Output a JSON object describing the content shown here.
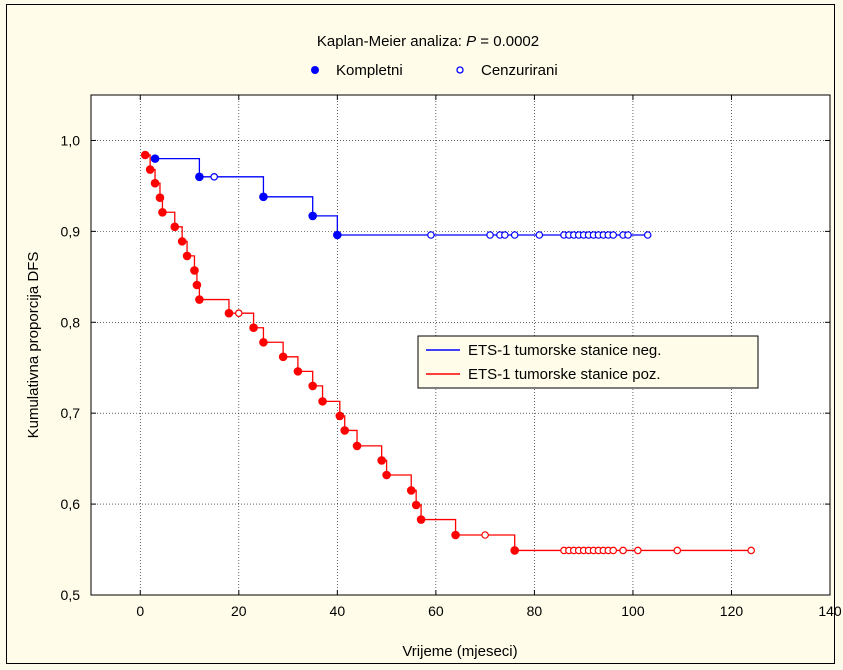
{
  "chart_data": {
    "type": "line",
    "title_prefix": "Kaplan-Meier analiza: ",
    "title_p": "P",
    "title_suffix": " = 0.0002",
    "marker_legend": {
      "complete": "Kompletni",
      "censored": "Cenzurirani"
    },
    "xlabel": "Vrijeme (mjeseci)",
    "ylabel": "Kumulativna proporcija DFS",
    "xlim": [
      -10,
      140
    ],
    "ylim": [
      0.5,
      1.05
    ],
    "xticks": [
      0,
      20,
      40,
      60,
      80,
      100,
      120,
      140
    ],
    "xtick_labels": [
      "0",
      "20",
      "40",
      "60",
      "80",
      "100",
      "120",
      "140"
    ],
    "yticks": [
      0.5,
      0.6,
      0.7,
      0.8,
      0.9,
      1.0
    ],
    "ytick_labels": [
      "0,5",
      "0,6",
      "0,7",
      "0,8",
      "0,9",
      "1,0"
    ],
    "series": [
      {
        "name": "ETS-1 tumorske stanice neg.",
        "color": "#0000ff",
        "start_x": 3,
        "start_y": 0.98,
        "end_x": 103,
        "events": [
          [
            3,
            0.98
          ],
          [
            12,
            0.96
          ],
          [
            25,
            0.938
          ],
          [
            35,
            0.917
          ],
          [
            40,
            0.896
          ]
        ],
        "censored": [
          [
            15,
            0.96
          ],
          [
            59,
            0.896
          ],
          [
            71,
            0.896
          ],
          [
            73,
            0.896
          ],
          [
            74,
            0.896
          ],
          [
            76,
            0.896
          ],
          [
            81,
            0.896
          ],
          [
            86,
            0.896
          ],
          [
            87,
            0.896
          ],
          [
            88,
            0.896
          ],
          [
            89,
            0.896
          ],
          [
            90,
            0.896
          ],
          [
            91,
            0.896
          ],
          [
            92,
            0.896
          ],
          [
            93,
            0.896
          ],
          [
            94,
            0.896
          ],
          [
            95,
            0.896
          ],
          [
            96,
            0.896
          ],
          [
            98,
            0.896
          ],
          [
            99,
            0.896
          ],
          [
            103,
            0.896
          ]
        ]
      },
      {
        "name": "ETS-1 tumorske stanice poz.",
        "color": "#ff0000",
        "start_x": 1,
        "start_y": 0.985,
        "end_x": 124,
        "events": [
          [
            1,
            0.984
          ],
          [
            2,
            0.968
          ],
          [
            3,
            0.953
          ],
          [
            4,
            0.937
          ],
          [
            4.5,
            0.921
          ],
          [
            7,
            0.905
          ],
          [
            8.5,
            0.889
          ],
          [
            9.5,
            0.873
          ],
          [
            11,
            0.857
          ],
          [
            11.5,
            0.841
          ],
          [
            12,
            0.825
          ],
          [
            18,
            0.81
          ],
          [
            23,
            0.794
          ],
          [
            25,
            0.778
          ],
          [
            29,
            0.762
          ],
          [
            32,
            0.746
          ],
          [
            35,
            0.73
          ],
          [
            37,
            0.713
          ],
          [
            40.5,
            0.697
          ],
          [
            41.5,
            0.681
          ],
          [
            44,
            0.664
          ],
          [
            49,
            0.648
          ],
          [
            50,
            0.632
          ],
          [
            55,
            0.615
          ],
          [
            56,
            0.599
          ],
          [
            57,
            0.583
          ],
          [
            64,
            0.566
          ],
          [
            76,
            0.549
          ]
        ],
        "censored": [
          [
            20,
            0.81
          ],
          [
            70,
            0.566
          ],
          [
            86,
            0.549
          ],
          [
            87,
            0.549
          ],
          [
            88,
            0.549
          ],
          [
            89,
            0.549
          ],
          [
            90,
            0.549
          ],
          [
            91,
            0.549
          ],
          [
            92,
            0.549
          ],
          [
            93,
            0.549
          ],
          [
            94,
            0.549
          ],
          [
            95,
            0.549
          ],
          [
            96,
            0.549
          ],
          [
            98,
            0.549
          ],
          [
            101,
            0.549
          ],
          [
            109,
            0.549
          ],
          [
            124,
            0.549
          ]
        ]
      }
    ]
  }
}
